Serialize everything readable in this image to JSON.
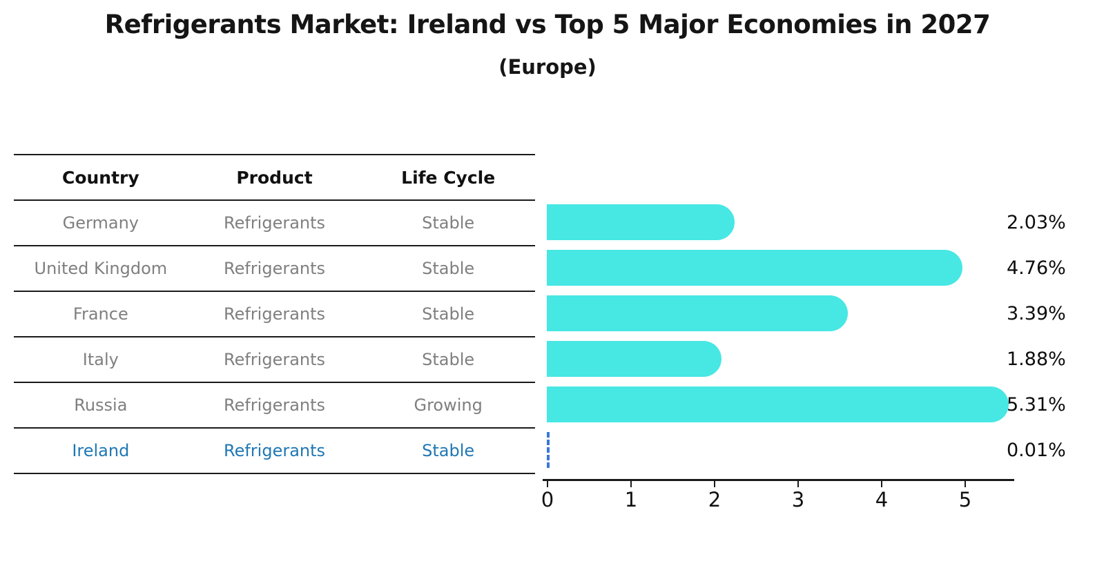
{
  "title": "Refrigerants Market: Ireland vs Top 5 Major Economies in 2027",
  "subtitle": "(Europe)",
  "table": {
    "headers": {
      "country": "Country",
      "product": "Product",
      "life_cycle": "Life Cycle"
    },
    "rows": [
      {
        "country": "Germany",
        "product": "Refrigerants",
        "life_cycle": "Stable",
        "value_label": "2.03%"
      },
      {
        "country": "United Kingdom",
        "product": "Refrigerants",
        "life_cycle": "Stable",
        "value_label": "4.76%"
      },
      {
        "country": "France",
        "product": "Refrigerants",
        "life_cycle": "Stable",
        "value_label": "3.39%"
      },
      {
        "country": "Italy",
        "product": "Refrigerants",
        "life_cycle": "Stable",
        "value_label": "1.88%"
      },
      {
        "country": "Russia",
        "product": "Refrigerants",
        "life_cycle": "Growing",
        "value_label": "5.31%"
      },
      {
        "country": "Ireland",
        "product": "Refrigerants",
        "life_cycle": "Stable",
        "value_label": "0.01%"
      }
    ]
  },
  "chart_data": {
    "type": "bar",
    "orientation": "horizontal",
    "title": "Refrigerants Market: Ireland vs Top 5 Major Economies in 2027",
    "subtitle": "(Europe)",
    "categories": [
      "Germany",
      "United Kingdom",
      "France",
      "Italy",
      "Russia",
      "Ireland"
    ],
    "values": [
      2.03,
      4.76,
      3.39,
      1.88,
      5.31,
      0.01
    ],
    "value_labels": [
      "2.03%",
      "4.76%",
      "3.39%",
      "1.88%",
      "5.31%",
      "0.01%"
    ],
    "xlabel": "",
    "ylabel": "",
    "xlim": [
      0,
      5.6
    ],
    "xticks": [
      "0",
      "1",
      "2",
      "3",
      "4",
      "5"
    ],
    "grid": false,
    "legend": false,
    "bar_color": "#47E7E4",
    "highlight_index": 5,
    "highlight_color": "#3A78D8",
    "highlight_text_color": "#1f77b4"
  }
}
